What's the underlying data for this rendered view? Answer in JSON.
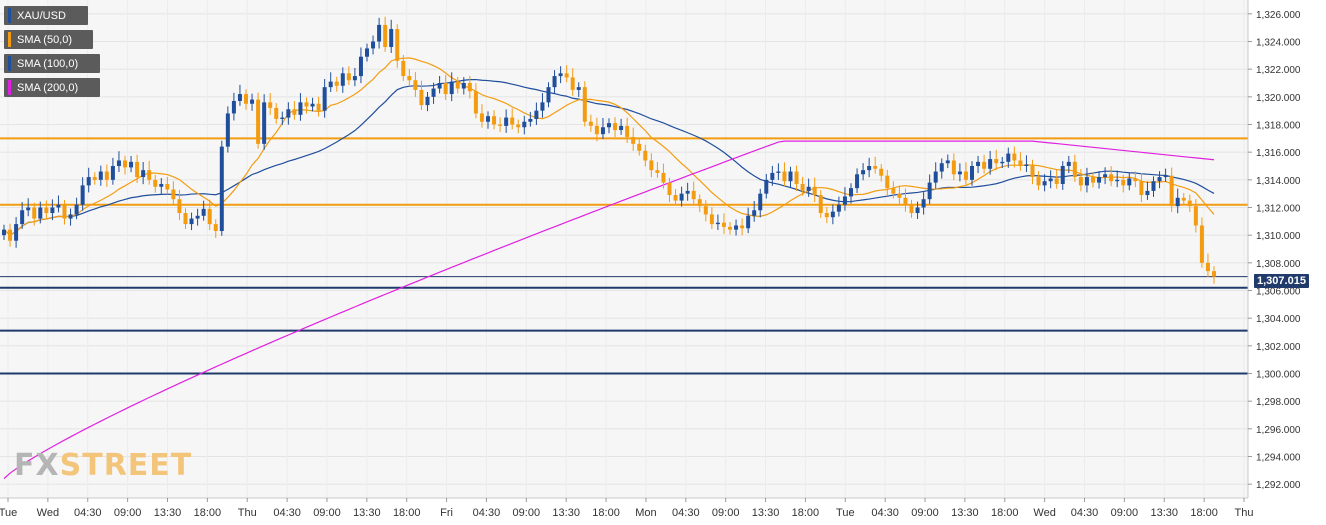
{
  "legend": [
    {
      "label": "XAU/USD",
      "color": "#1f4e9b"
    },
    {
      "label": "SMA (50,0)",
      "color": "#f39c12"
    },
    {
      "label": "SMA (100,0)",
      "color": "#1f4e9b"
    },
    {
      "label": "SMA (200,0)",
      "color": "#e020e0"
    }
  ],
  "current_price": "1,307.015",
  "logo": {
    "fx": "FX",
    "street": "STREET"
  },
  "colors": {
    "up": "#1f4e9b",
    "down": "#f39c12",
    "sma50": "#f39c12",
    "sma100": "#1f4e9b",
    "sma200": "#e020e0",
    "grid": "#e6e6e6",
    "bg": "#f6f6f6"
  },
  "chart_data": {
    "type": "candlestick",
    "symbol": "XAU/USD",
    "ylim": [
      1291,
      1327
    ],
    "y_ticks": [
      "1,292.000",
      "1,294.000",
      "1,296.000",
      "1,298.000",
      "1,300.000",
      "1,302.000",
      "1,304.000",
      "1,306.000",
      "1,308.000",
      "1,310.000",
      "1,312.000",
      "1,314.000",
      "1,316.000",
      "1,318.000",
      "1,320.000",
      "1,322.000",
      "1,324.000",
      "1,326.000"
    ],
    "y_tick_values": [
      1292,
      1294,
      1296,
      1298,
      1300,
      1302,
      1304,
      1306,
      1308,
      1310,
      1312,
      1314,
      1316,
      1318,
      1320,
      1322,
      1324,
      1326
    ],
    "x_ticks": [
      "Tue",
      "Wed",
      "04:30",
      "09:00",
      "13:30",
      "18:00",
      "Thu",
      "04:30",
      "09:00",
      "13:30",
      "18:00",
      "Fri",
      "04:30",
      "09:00",
      "13:30",
      "18:00",
      "Mon",
      "04:30",
      "09:00",
      "13:30",
      "18:00",
      "Tue",
      "04:30",
      "09:00",
      "13:30",
      "18:00",
      "Wed",
      "04:30",
      "09:00",
      "13:30",
      "18:00",
      "Thu"
    ],
    "horizontal_levels": [
      {
        "value": 1317.0,
        "color": "#f39c12"
      },
      {
        "value": 1312.2,
        "color": "#f39c12"
      },
      {
        "value": 1306.2,
        "color": "#1f3a6b"
      },
      {
        "value": 1303.1,
        "color": "#1f3a6b"
      },
      {
        "value": 1300.0,
        "color": "#1f3a6b"
      }
    ],
    "close_series": [
      1310.4,
      1309.6,
      1310.8,
      1311.8,
      1312.0,
      1311.2,
      1312.0,
      1311.6,
      1312.0,
      1312.2,
      1311.2,
      1311.5,
      1312.2,
      1313.6,
      1314.2,
      1314.0,
      1314.6,
      1314.0,
      1315.0,
      1315.4,
      1314.9,
      1315.3,
      1314.2,
      1314.7,
      1314.0,
      1313.5,
      1313.7,
      1313.3,
      1312.6,
      1311.6,
      1310.8,
      1311.2,
      1311.4,
      1311.9,
      1310.8,
      1310.3,
      1316.4,
      1318.8,
      1319.7,
      1320.2,
      1319.5,
      1319.8,
      1316.6,
      1319.6,
      1319.2,
      1318.4,
      1318.5,
      1319.1,
      1318.7,
      1319.6,
      1319.3,
      1319.5,
      1319.0,
      1320.7,
      1321.1,
      1320.8,
      1321.7,
      1321.2,
      1321.5,
      1322.9,
      1323.5,
      1324.0,
      1325.2,
      1323.6,
      1324.9,
      1322.6,
      1321.5,
      1321.2,
      1320.5,
      1319.4,
      1320.0,
      1320.6,
      1321.0,
      1320.2,
      1321.1,
      1320.6,
      1321.0,
      1320.4,
      1318.8,
      1318.2,
      1318.6,
      1318.0,
      1317.9,
      1318.5,
      1318.0,
      1317.8,
      1318.2,
      1318.4,
      1319.0,
      1319.6,
      1320.7,
      1321.5,
      1321.7,
      1321.4,
      1320.5,
      1320.7,
      1318.2,
      1317.9,
      1317.3,
      1317.8,
      1318.1,
      1317.6,
      1317.9,
      1317.1,
      1316.6,
      1316.1,
      1315.4,
      1314.7,
      1314.5,
      1313.8,
      1312.9,
      1312.5,
      1313.0,
      1313.2,
      1312.6,
      1312.1,
      1311.5,
      1310.8,
      1310.9,
      1310.6,
      1310.4,
      1310.7,
      1310.5,
      1311.4,
      1311.8,
      1313.0,
      1314.0,
      1314.5,
      1314.6,
      1313.9,
      1314.6,
      1313.7,
      1313.2,
      1313.5,
      1312.9,
      1311.6,
      1311.3,
      1311.7,
      1312.2,
      1312.8,
      1313.4,
      1314.4,
      1314.7,
      1315.0,
      1314.8,
      1314.3,
      1313.4,
      1313.0,
      1312.7,
      1312.2,
      1311.6,
      1312.0,
      1312.6,
      1313.8,
      1314.6,
      1315.2,
      1315.4,
      1314.4,
      1314.6,
      1314.0,
      1315.0,
      1315.3,
      1314.8,
      1315.5,
      1315.2,
      1315.3,
      1315.9,
      1315.4,
      1315.0,
      1315.1,
      1314.2,
      1313.6,
      1313.9,
      1314.1,
      1313.7,
      1315.0,
      1315.3,
      1314.2,
      1313.6,
      1314.2,
      1313.8,
      1314.2,
      1314.4,
      1313.9,
      1314.0,
      1313.6,
      1314.1,
      1313.9,
      1312.9,
      1313.2,
      1313.9,
      1314.2,
      1314.3,
      1312.1,
      1312.7,
      1312.5,
      1312.1,
      1310.7,
      1308.0,
      1307.4,
      1307.0
    ]
  }
}
